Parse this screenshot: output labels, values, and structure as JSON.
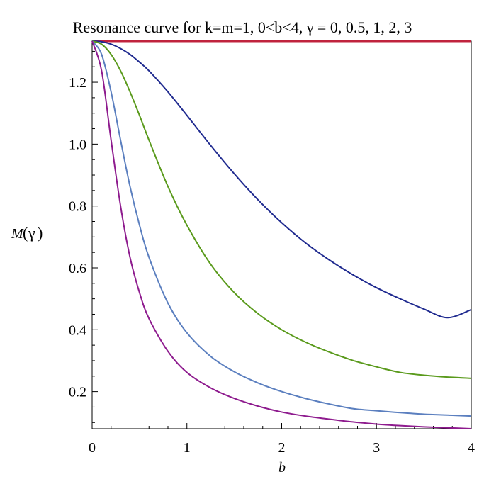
{
  "chart_data": {
    "type": "line",
    "title": "Resonance curve for k=m=1, 0<b<4,  γ = 0,  0.5,  1,  2,  3",
    "xlabel": "b",
    "ylabel": {
      "func": "M",
      "arg": "γ",
      "open": "(",
      "close": ")"
    },
    "xlim": [
      0,
      4
    ],
    "ylim": [
      0.08,
      1.333
    ],
    "xticks": [
      0,
      1,
      2,
      3,
      4
    ],
    "xtick_labels": [
      "0",
      "1",
      "2",
      "3",
      "4"
    ],
    "yticks": [
      0.2,
      0.4,
      0.6,
      0.8,
      1.0,
      1.2
    ],
    "ytick_labels": [
      "0.2",
      "0.4",
      "0.6",
      "0.8",
      "1.0",
      "1.2"
    ],
    "x": [
      0,
      0.1,
      0.2,
      0.3,
      0.4,
      0.5,
      0.6,
      0.8,
      1.0,
      1.25,
      1.5,
      1.75,
      2.0,
      2.25,
      2.5,
      2.75,
      3.0,
      3.25,
      3.5,
      3.75,
      4.0
    ],
    "series": [
      {
        "color": "#c0233e",
        "values": [
          1.333,
          1.333,
          1.333,
          1.333,
          1.333,
          1.333,
          1.333,
          1.333,
          1.333,
          1.333,
          1.333,
          1.333,
          1.333,
          1.333,
          1.333,
          1.333,
          1.333,
          1.333,
          1.333,
          1.333,
          1.333
        ]
      },
      {
        "color": "#1f2a8f",
        "values": [
          1.333,
          1.331,
          1.323,
          1.309,
          1.29,
          1.265,
          1.237,
          1.169,
          1.093,
          0.996,
          0.904,
          0.82,
          0.746,
          0.681,
          0.626,
          0.578,
          0.536,
          0.5,
          0.467,
          0.439,
          0.465
        ]
      },
      {
        "color": "#5a9a1c",
        "values": [
          1.333,
          1.323,
          1.29,
          1.237,
          1.169,
          1.093,
          1.013,
          0.863,
          0.738,
          0.612,
          0.52,
          0.452,
          0.4,
          0.36,
          0.328,
          0.301,
          0.28,
          0.262,
          0.253,
          0.247,
          0.243
        ]
      },
      {
        "color": "#5b7fbf",
        "values": [
          1.333,
          1.29,
          1.169,
          1.013,
          0.863,
          0.738,
          0.634,
          0.486,
          0.39,
          0.314,
          0.264,
          0.228,
          0.2,
          0.178,
          0.16,
          0.145,
          0.138,
          0.132,
          0.127,
          0.124,
          0.121
        ]
      },
      {
        "color": "#8e1b8e",
        "values": [
          1.333,
          1.237,
          1.013,
          0.8,
          0.634,
          0.52,
          0.436,
          0.33,
          0.262,
          0.212,
          0.178,
          0.153,
          0.134,
          0.121,
          0.111,
          0.102,
          0.095,
          0.09,
          0.086,
          0.083,
          0.08
        ]
      }
    ],
    "grid": false
  }
}
